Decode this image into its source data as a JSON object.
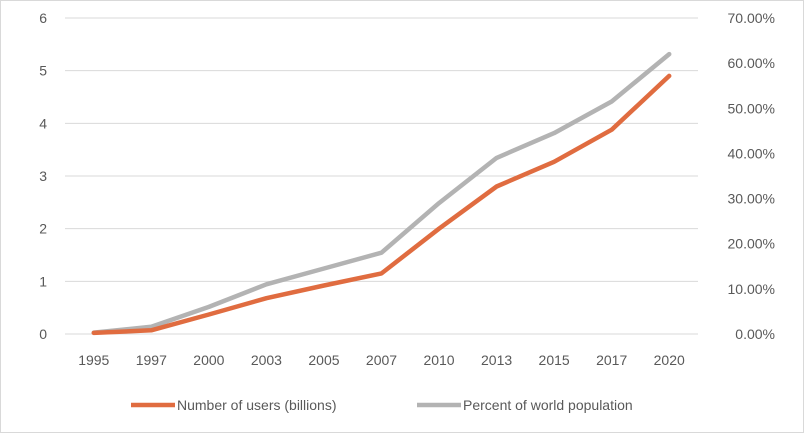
{
  "chart_data": {
    "type": "line",
    "title": "",
    "xlabel": "",
    "ylabel": "",
    "categories": [
      "1995",
      "1997",
      "2000",
      "2003",
      "2005",
      "2007",
      "2010",
      "2013",
      "2015",
      "2017",
      "2020"
    ],
    "y_left": {
      "min": 0,
      "max": 6,
      "ticks": [
        "0",
        "1",
        "2",
        "3",
        "4",
        "5",
        "6"
      ]
    },
    "y_right": {
      "min": 0,
      "max": 0.7,
      "ticks": [
        "0.00%",
        "10.00%",
        "20.00%",
        "30.00%",
        "40.00%",
        "50.00%",
        "60.00%",
        "70.00%"
      ]
    },
    "grid": true,
    "legend_position": "bottom",
    "series": [
      {
        "name": "Number of users (billions)",
        "axis": "left",
        "color": "#e06c40",
        "values": [
          0.02,
          0.07,
          0.37,
          0.68,
          0.92,
          1.15,
          2.0,
          2.8,
          3.27,
          3.88,
          4.9
        ]
      },
      {
        "name": "Percent of world population",
        "axis": "right",
        "color": "#b3b3b3",
        "values": [
          0.003,
          0.016,
          0.06,
          0.11,
          0.145,
          0.18,
          0.29,
          0.39,
          0.445,
          0.515,
          0.62
        ]
      }
    ]
  }
}
